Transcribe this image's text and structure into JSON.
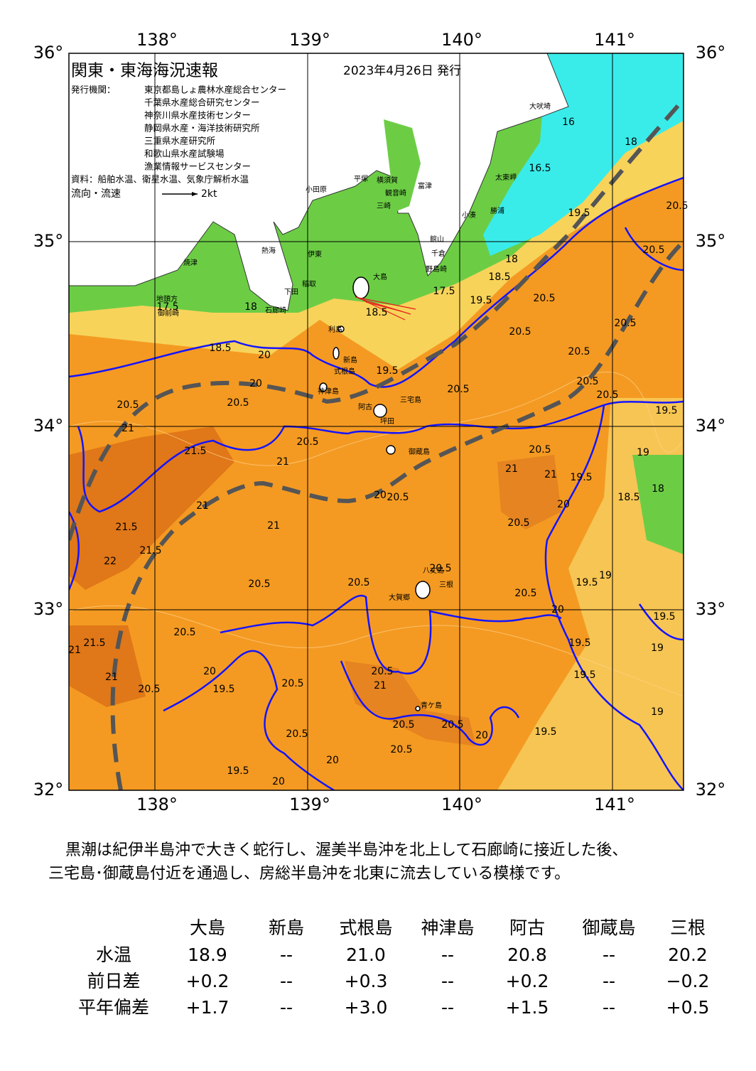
{
  "header": {
    "title": "関東・東海海況速報",
    "date": "2023年4月26日 発行",
    "publisher_label": "発行機関：",
    "publishers": [
      "東京都島しょ農林水産総合センター",
      "千葉県水産総合研究センター",
      "神奈川県水産技術センター",
      "静岡県水産・海洋技術研究所",
      "三重県水産研究所",
      "和歌山県水産試験場",
      "漁業情報サービスセンター"
    ],
    "source": "資料：船舶水温、衛星水温、気象庁解析水温",
    "flow_legend": "流向・流速",
    "flow_scale": "2kt"
  },
  "map": {
    "lon_labels": [
      "138°",
      "139°",
      "140°",
      "141°"
    ],
    "lat_labels": [
      "36°",
      "35°",
      "34°",
      "33°",
      "32°"
    ],
    "place_names": [
      "大吠埼",
      "太東岬",
      "勝浦",
      "小湊",
      "館山",
      "千倉",
      "野島崎",
      "富津",
      "観音崎",
      "横須賀",
      "三崎",
      "平塚",
      "小田原",
      "熱海",
      "伊東",
      "稲取",
      "下田",
      "石廊崎",
      "焼津",
      "地頭方",
      "御前崎",
      "大島",
      "利島",
      "新島",
      "式根島",
      "神津島",
      "三宅島",
      "阿古",
      "坪田",
      "御蔵島",
      "八丈島",
      "三根",
      "大賀郷",
      "青ケ島"
    ],
    "contour_labels": [
      "16",
      "18",
      "16.5",
      "20.5",
      "20.5",
      "19.5",
      "18",
      "18.5",
      "17.5",
      "19.5",
      "18",
      "17.5",
      "18.5",
      "20.5",
      "20.5",
      "20.5",
      "20.5",
      "20.5",
      "20.5",
      "19.5",
      "20",
      "20",
      "18.5",
      "19.5",
      "20.5",
      "20.5",
      "20.5",
      "21",
      "20.5",
      "21.5",
      "21",
      "20.5",
      "21",
      "21",
      "19",
      "19.5",
      "18.5",
      "18",
      "20.5",
      "20",
      "20",
      "20.5",
      "21",
      "21",
      "21.5",
      "21.5",
      "22",
      "20.5",
      "20.5",
      "20.5",
      "20.5",
      "19.5",
      "19",
      "20",
      "19.5",
      "19.5",
      "19.5",
      "19",
      "19",
      "20.5",
      "21.5",
      "21",
      "21",
      "20.5",
      "20",
      "19.5",
      "20.5",
      "20.5",
      "21",
      "20.5",
      "20.5",
      "20.5",
      "20.5",
      "19.5",
      "20",
      "19.5",
      "20",
      "20"
    ]
  },
  "summary": {
    "lines": [
      "黒潮は紀伊半島沖で大きく蛇行し、渥美半島沖を北上して石廊崎に接近した後、",
      "三宅島･御蔵島付近を通過し、房総半島沖を北東に流去している模様です。"
    ]
  },
  "table": {
    "columns": [
      "大島",
      "新島",
      "式根島",
      "神津島",
      "阿古",
      "御蔵島",
      "三根"
    ],
    "rows": [
      {
        "label": "水温",
        "values": [
          "18.9",
          "--",
          "21.0",
          "--",
          "20.8",
          "--",
          "20.2"
        ]
      },
      {
        "label": "前日差",
        "values": [
          "+0.2",
          "--",
          "+0.3",
          "--",
          "+0.2",
          "--",
          "−0.2"
        ]
      },
      {
        "label": "平年偏差",
        "values": [
          "+1.7",
          "--",
          "+3.0",
          "--",
          "+1.5",
          "--",
          "+0.5"
        ]
      }
    ]
  }
}
